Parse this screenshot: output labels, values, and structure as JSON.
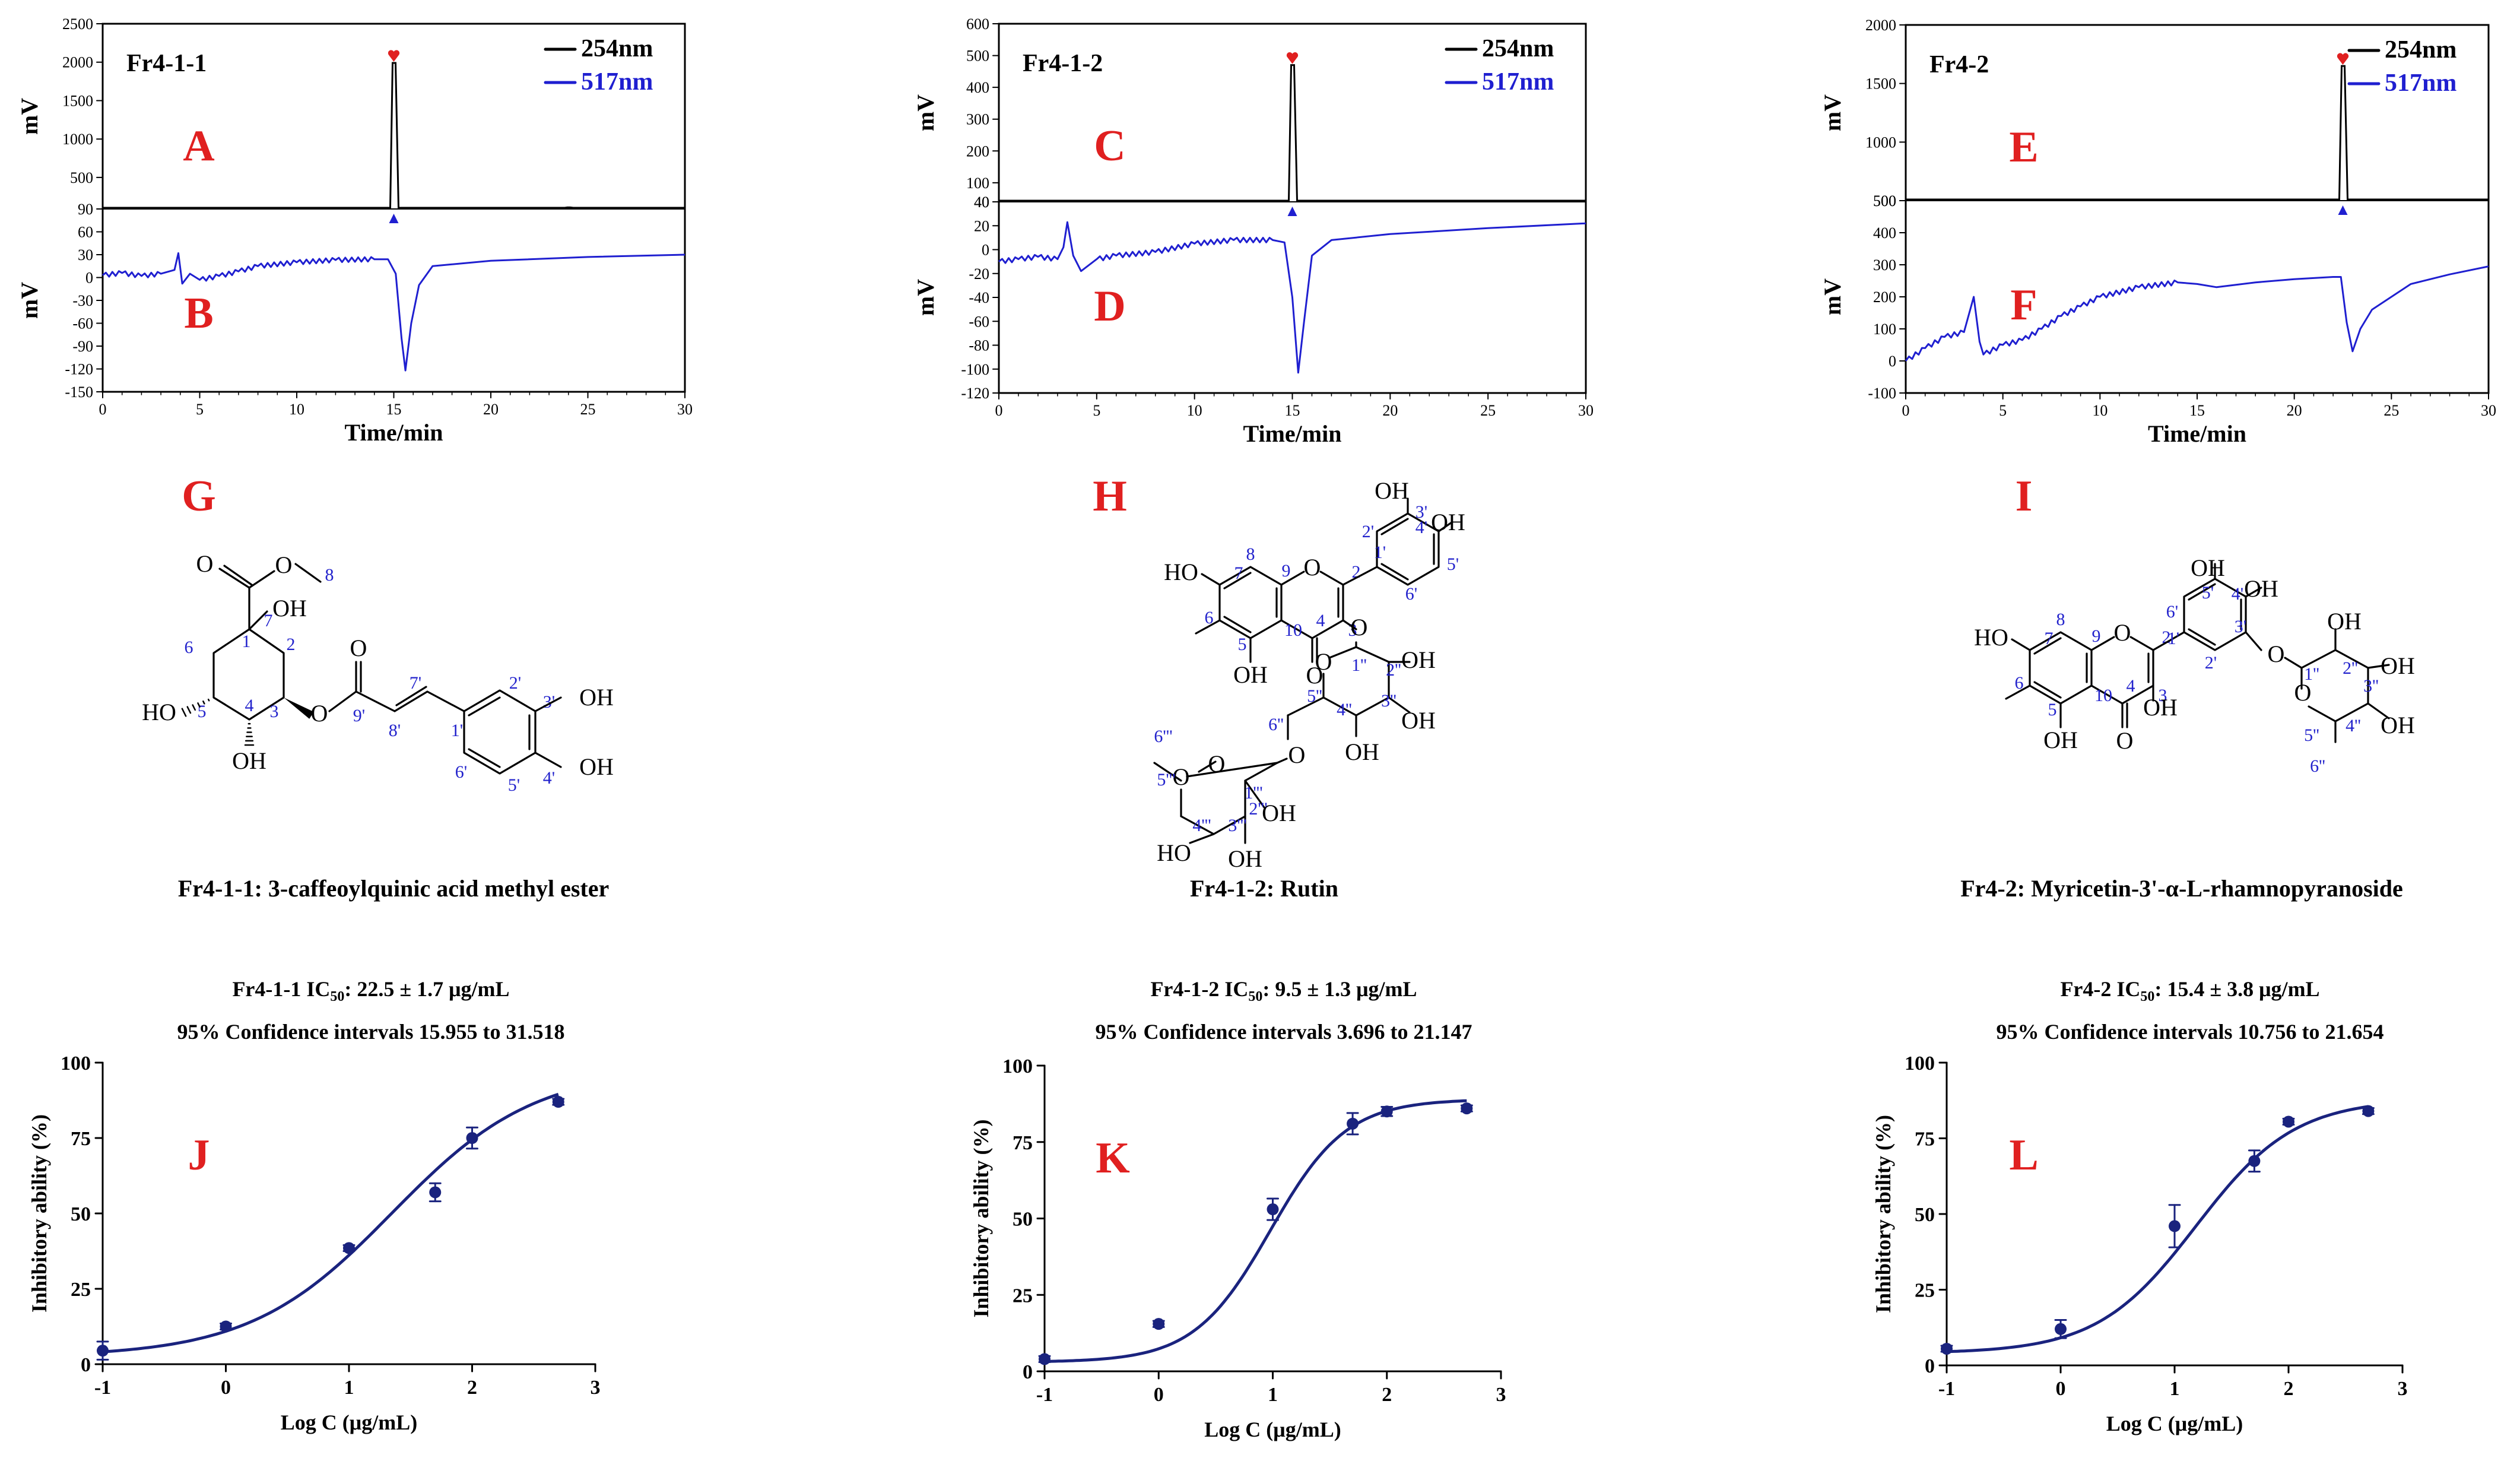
{
  "chart_data": [
    {
      "type": "line",
      "panel": "A/B",
      "sample_label": "Fr4-1-1",
      "top_panel_letter": "A",
      "bottom_panel_letter": "B",
      "xlabel": "Time/min",
      "ylabel_top": "mV",
      "ylabel_bottom": "mV",
      "xlim": [
        0,
        30
      ],
      "x_ticks": [
        "0",
        "5",
        "10",
        "15",
        "20",
        "25",
        "30"
      ],
      "top": {
        "ylim": [
          90,
          2500
        ],
        "y_ticks": [
          "90",
          "500",
          "1000",
          "1500",
          "2000",
          "2500"
        ],
        "baseline": 90,
        "peaks": [
          {
            "x": 15.0,
            "y": 1990
          },
          {
            "x": 24.0,
            "y": 110
          }
        ]
      },
      "bottom": {
        "ylim": [
          -150,
          90
        ],
        "y_ticks": [
          "-150",
          "-120",
          "-90",
          "-60",
          "-30",
          "0",
          "30",
          "60"
        ],
        "points": [
          [
            0,
            3
          ],
          [
            1,
            6
          ],
          [
            2,
            2
          ],
          [
            3,
            5
          ],
          [
            3.7,
            10
          ],
          [
            3.9,
            32
          ],
          [
            4.1,
            -8
          ],
          [
            4.5,
            5
          ],
          [
            5,
            -3
          ],
          [
            6,
            2
          ],
          [
            7,
            8
          ],
          [
            8,
            15
          ],
          [
            10,
            20
          ],
          [
            12,
            23
          ],
          [
            14,
            24
          ],
          [
            14.7,
            24
          ],
          [
            15.1,
            5
          ],
          [
            15.4,
            -80
          ],
          [
            15.6,
            -122
          ],
          [
            15.9,
            -60
          ],
          [
            16.3,
            -10
          ],
          [
            17,
            15
          ],
          [
            20,
            22
          ],
          [
            25,
            27
          ],
          [
            30,
            30
          ]
        ]
      },
      "legend": [
        {
          "label": "254nm",
          "color": "#000000"
        },
        {
          "label": "517nm",
          "color": "#1f1fd0"
        }
      ]
    },
    {
      "type": "line",
      "panel": "C/D",
      "sample_label": "Fr4-1-2",
      "top_panel_letter": "C",
      "bottom_panel_letter": "D",
      "xlabel": "Time/min",
      "ylabel_top": "mV",
      "ylabel_bottom": "mV",
      "xlim": [
        0,
        30
      ],
      "x_ticks": [
        "0",
        "5",
        "10",
        "15",
        "20",
        "25",
        "30"
      ],
      "top": {
        "ylim": [
          40,
          600
        ],
        "y_ticks": [
          "40",
          "100",
          "200",
          "300",
          "400",
          "500",
          "600"
        ],
        "baseline": 40,
        "peaks": [
          {
            "x": 15.0,
            "y": 470
          }
        ]
      },
      "bottom": {
        "ylim": [
          -120,
          40
        ],
        "y_ticks": [
          "-120",
          "-100",
          "-80",
          "-60",
          "-40",
          "-20",
          "0",
          "20",
          "40"
        ],
        "points": [
          [
            0,
            -10
          ],
          [
            1,
            -8
          ],
          [
            2,
            -6
          ],
          [
            3,
            -8
          ],
          [
            3.3,
            2
          ],
          [
            3.5,
            23
          ],
          [
            3.8,
            -5
          ],
          [
            4.2,
            -18
          ],
          [
            5,
            -8
          ],
          [
            6,
            -5
          ],
          [
            8,
            -2
          ],
          [
            10,
            5
          ],
          [
            12,
            8
          ],
          [
            14,
            8
          ],
          [
            14.6,
            6
          ],
          [
            15.0,
            -40
          ],
          [
            15.3,
            -103
          ],
          [
            15.6,
            -60
          ],
          [
            16,
            -5
          ],
          [
            17,
            8
          ],
          [
            20,
            13
          ],
          [
            25,
            18
          ],
          [
            30,
            22
          ]
        ]
      },
      "legend": [
        {
          "label": "254nm",
          "color": "#000000"
        },
        {
          "label": "517nm",
          "color": "#1f1fd0"
        }
      ]
    },
    {
      "type": "line",
      "panel": "E/F",
      "sample_label": "Fr4-2",
      "top_panel_letter": "E",
      "bottom_panel_letter": "F",
      "xlabel": "Time/min",
      "ylabel_top": "mV",
      "ylabel_bottom": "mV",
      "xlim": [
        0,
        30
      ],
      "x_ticks": [
        "0",
        "5",
        "10",
        "15",
        "20",
        "25",
        "30"
      ],
      "top": {
        "ylim": [
          500,
          2000
        ],
        "y_ticks": [
          "500",
          "1000",
          "1500",
          "2000"
        ],
        "baseline": 500,
        "peaks": [
          {
            "x": 22.5,
            "y": 1650
          }
        ]
      },
      "bottom": {
        "ylim": [
          -100,
          500
        ],
        "y_ticks": [
          "-100",
          "0",
          "100",
          "200",
          "300",
          "400",
          "500"
        ],
        "points": [
          [
            0,
            0
          ],
          [
            1,
            40
          ],
          [
            2,
            75
          ],
          [
            3,
            90
          ],
          [
            3.5,
            200
          ],
          [
            3.8,
            60
          ],
          [
            4,
            20
          ],
          [
            5,
            50
          ],
          [
            6,
            65
          ],
          [
            7,
            100
          ],
          [
            8,
            140
          ],
          [
            9,
            170
          ],
          [
            10,
            200
          ],
          [
            12,
            230
          ],
          [
            14,
            245
          ],
          [
            15,
            240
          ],
          [
            16,
            230
          ],
          [
            18,
            245
          ],
          [
            20,
            255
          ],
          [
            22,
            262
          ],
          [
            22.4,
            262
          ],
          [
            22.7,
            120
          ],
          [
            23,
            30
          ],
          [
            23.4,
            100
          ],
          [
            24,
            160
          ],
          [
            26,
            240
          ],
          [
            28,
            270
          ],
          [
            30,
            295
          ]
        ]
      },
      "legend": [
        {
          "label": "254nm",
          "color": "#000000"
        },
        {
          "label": "517nm",
          "color": "#1f1fd0"
        }
      ]
    },
    {
      "type": "scatter",
      "panel": "J",
      "letter": "J",
      "title_line1_main": "Fr4-1-1 IC",
      "title_line1_sub": "50",
      "title_line1_value": ": 22.5 ± 1.7 μg/mL",
      "title_line2": "95% Confidence intervals 15.955 to 31.518",
      "xlabel": "Log C (μg/mL)",
      "ylabel": "Inhibitory ability  (%)",
      "xlim": [
        -1,
        3
      ],
      "ylim": [
        0,
        100
      ],
      "x_ticks": [
        "-1",
        "0",
        "1",
        "2",
        "3"
      ],
      "y_ticks": [
        "0",
        "25",
        "50",
        "75",
        "100"
      ],
      "points": [
        {
          "x": -1,
          "y": 4.5,
          "err": 3
        },
        {
          "x": 0,
          "y": 12.5,
          "err": 1
        },
        {
          "x": 1,
          "y": 38.5,
          "err": 1
        },
        {
          "x": 1.7,
          "y": 57,
          "err": 3
        },
        {
          "x": 2,
          "y": 75,
          "err": 3.5
        },
        {
          "x": 2.7,
          "y": 87,
          "err": 1
        }
      ],
      "fit": {
        "bottom": 2.5,
        "top": 98,
        "log_ic50": 1.3522,
        "hill": 0.75
      },
      "color": "#1a237e"
    },
    {
      "type": "scatter",
      "panel": "K",
      "letter": "K",
      "title_line1_main": "Fr4-1-2 IC",
      "title_line1_sub": "50",
      "title_line1_value": ": 9.5 ± 1.3 μg/mL",
      "title_line2": "95% Confidence intervals 3.696 to 21.147",
      "xlabel": "Log C (μg/mL)",
      "ylabel": "Inhibitory ability  (%)",
      "xlim": [
        -1,
        3
      ],
      "ylim": [
        0,
        100
      ],
      "x_ticks": [
        "-1",
        "0",
        "1",
        "2",
        "3"
      ],
      "y_ticks": [
        "0",
        "25",
        "50",
        "75",
        "100"
      ],
      "points": [
        {
          "x": -1,
          "y": 4,
          "err": 1
        },
        {
          "x": 0,
          "y": 15.5,
          "err": 1
        },
        {
          "x": 1,
          "y": 53,
          "err": 3.5
        },
        {
          "x": 1.7,
          "y": 81,
          "err": 3.5
        },
        {
          "x": 2,
          "y": 85,
          "err": 1.5
        },
        {
          "x": 2.7,
          "y": 86,
          "err": 1
        }
      ],
      "fit": {
        "bottom": 3,
        "top": 89,
        "log_ic50": 0.9777,
        "hill": 1.3
      },
      "color": "#1a237e"
    },
    {
      "type": "scatter",
      "panel": "L",
      "letter": "L",
      "title_line1_main": "Fr4-2 IC",
      "title_line1_sub": "50",
      "title_line1_value": ": 15.4 ± 3.8 μg/mL",
      "title_line2": "95% Confidence intervals 10.756 to 21.654",
      "xlabel": "Log C (μg/mL)",
      "ylabel": "Inhibitory ability  (%)",
      "xlim": [
        -1,
        3
      ],
      "ylim": [
        0,
        100
      ],
      "x_ticks": [
        "-1",
        "0",
        "1",
        "2",
        "3"
      ],
      "y_ticks": [
        "0",
        "25",
        "50",
        "75",
        "100"
      ],
      "points": [
        {
          "x": -1,
          "y": 5.5,
          "err": 1
        },
        {
          "x": 0,
          "y": 12,
          "err": 3
        },
        {
          "x": 1,
          "y": 46,
          "err": 7
        },
        {
          "x": 1.7,
          "y": 67.5,
          "err": 3.5
        },
        {
          "x": 2,
          "y": 80.5,
          "err": 1
        },
        {
          "x": 2.7,
          "y": 84,
          "err": 1
        }
      ],
      "fit": {
        "bottom": 4,
        "top": 88,
        "log_ic50": 1.1875,
        "hill": 1.0
      },
      "color": "#1a237e"
    }
  ],
  "structures": [
    {
      "letter": "G",
      "caption": "Fr4-1-1: 3-caffeoylquinic acid methyl ester",
      "atoms": {
        "O_carbonyl": "O",
        "O_ester": "O",
        "me_num": "8",
        "OH_1": "OH",
        "OH_5": "HO",
        "OH_4": "OH",
        "O_3": "O",
        "O_9p": "O",
        "OH_3p": "OH",
        "OH_4p": "OH"
      },
      "numbers": {
        "n7": "7",
        "n1": "1",
        "n2": "2",
        "n6": "6",
        "n5": "5",
        "n4": "4",
        "n3": "3",
        "n9p": "9'",
        "n7p": "7'",
        "n8p": "8'",
        "n1p": "1'",
        "n2p": "2'",
        "n3p": "3'",
        "n4p": "4'",
        "n5p": "5'",
        "n6p": "6'"
      }
    },
    {
      "letter": "H",
      "caption": "Fr4-1-2: Rutin",
      "atoms": {
        "HO7": "HO",
        "O1": "O",
        "OH5": "OH",
        "O4": "O",
        "OH3p": "OH",
        "OH4p": "OH",
        "O3": "O",
        "O_glc": "O",
        "OH2pp": "OH",
        "OH3pp": "OH",
        "OH4pp": "OH",
        "O6pp": "O",
        "O_rha": "O",
        "O_rha_link": "O",
        "HO4ppp": "HO",
        "OH2ppp": "OH",
        "OH3ppp": "OH"
      },
      "numbers": {
        "n2": "2",
        "n3": "3",
        "n4": "4",
        "n5": "5",
        "n6": "6",
        "n7": "7",
        "n8": "8",
        "n9": "9",
        "n10": "10",
        "n1p": "1'",
        "n2p": "2'",
        "n3p": "3'",
        "n4p": "4'",
        "n5p": "5'",
        "n6p": "6'",
        "n1pp": "1''",
        "n2pp": "2''",
        "n3pp": "3''",
        "n4pp": "4''",
        "n5pp": "5''",
        "n6pp": "6''",
        "n1ppp": "1'''",
        "n2ppp": "2'''",
        "n3ppp": "3'''",
        "n4ppp": "4'''",
        "n5ppp": "5'''",
        "n6ppp": "6'''"
      }
    },
    {
      "letter": "I",
      "caption": "Fr4-2: Myricetin-3'-α-L-rhamnopyranoside",
      "atoms": {
        "HO7": "HO",
        "O1": "O",
        "OH5": "OH",
        "O4": "O",
        "OH3": "OH",
        "OH5p": "OH",
        "OH4p": "OH",
        "O3p": "O",
        "O_rha": "O",
        "OH2pp": "OH",
        "OH3pp": "OH",
        "OH4pp": "OH"
      },
      "numbers": {
        "n2": "2",
        "n3": "3",
        "n4": "4",
        "n5": "5",
        "n6": "6",
        "n7": "7",
        "n8": "8",
        "n9": "9",
        "n10": "10",
        "n1p": "1'",
        "n2p": "2'",
        "n3p": "3'",
        "n4p": "4'",
        "n5p": "5'",
        "n6p": "6'",
        "n1pp": "1''",
        "n2pp": "2''",
        "n3pp": "3''",
        "n4pp": "4''",
        "n5pp": "5''",
        "n6pp": "6''"
      }
    }
  ],
  "colors": {
    "axis": "#000000",
    "trace_254": "#000000",
    "trace_517": "#1f1fd0",
    "peak_marker": "#e02020",
    "panel_letter": "#e02020",
    "fit": "#1a237e",
    "atom_number": "#2222cc"
  }
}
